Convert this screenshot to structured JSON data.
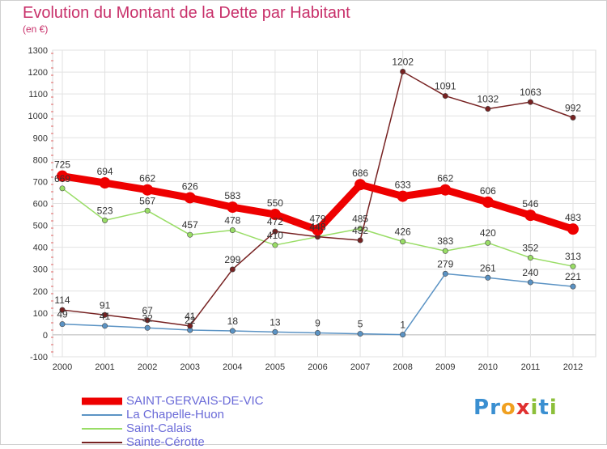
{
  "title": "Evolution du Montant de la Dette par Habitant",
  "unit_label": "(en €)",
  "brand": {
    "text": "Proxiti",
    "letters": [
      {
        "ch": "P",
        "color": "#3a8fd1"
      },
      {
        "ch": "r",
        "color": "#3a8fd1"
      },
      {
        "ch": "o",
        "color": "#f0a020"
      },
      {
        "ch": "x",
        "color": "#e03030"
      },
      {
        "ch": "i",
        "color": "#8cbf3a"
      },
      {
        "ch": "t",
        "color": "#3a8fd1"
      },
      {
        "ch": "i",
        "color": "#8cbf3a"
      }
    ]
  },
  "chart_data": {
    "type": "line",
    "title": "Evolution du Montant de la Dette par Habitant",
    "ylabel": "(en €)",
    "xlabel": "",
    "x": [
      "2000",
      "2001",
      "2002",
      "2003",
      "2004",
      "2005",
      "2006",
      "2007",
      "2008",
      "2009",
      "2010",
      "2011",
      "2012"
    ],
    "ylim": [
      -100,
      1300
    ],
    "yticks": [
      -100,
      0,
      100,
      200,
      300,
      400,
      500,
      600,
      700,
      800,
      900,
      1000,
      1100,
      1200,
      1300
    ],
    "grid": true,
    "legend_position": "bottom-left",
    "series": [
      {
        "name": "SAINT-GERVAIS-DE-VIC",
        "color": "#ee0000",
        "values": [
          725,
          694,
          662,
          626,
          583,
          550,
          479,
          686,
          633,
          662,
          606,
          546,
          483
        ]
      },
      {
        "name": "La Chapelle-Huon",
        "color": "#5b93c4",
        "values": [
          49,
          41,
          32,
          22,
          18,
          13,
          9,
          5,
          1,
          279,
          261,
          240,
          221
        ]
      },
      {
        "name": "Saint-Calais",
        "color": "#99dd66",
        "values": [
          669,
          523,
          567,
          457,
          478,
          410,
          448,
          485,
          426,
          383,
          420,
          352,
          313
        ]
      },
      {
        "name": "Sainte-Cérotte",
        "color": "#772222",
        "values": [
          114,
          91,
          67,
          41,
          299,
          472,
          448,
          432,
          1202,
          1091,
          1032,
          1063,
          992
        ]
      }
    ],
    "data_labels": [
      [
        "725",
        "694",
        "662",
        "626",
        "583",
        "550",
        "479",
        "686",
        "633",
        "662",
        "606",
        "546",
        "483"
      ],
      [
        "49",
        "41",
        "32",
        "22",
        "18",
        "13",
        "9",
        "5",
        "1",
        "279",
        "261",
        "240",
        "221"
      ],
      [
        "669",
        "523",
        "567",
        "457",
        "478",
        "410",
        "448",
        "485",
        "426",
        "383",
        "420",
        "352",
        "313"
      ],
      [
        "114",
        "91",
        "67",
        "41",
        "299",
        "472",
        "448",
        "432",
        "1202",
        "1091",
        "1032",
        "1063",
        "992"
      ]
    ]
  }
}
